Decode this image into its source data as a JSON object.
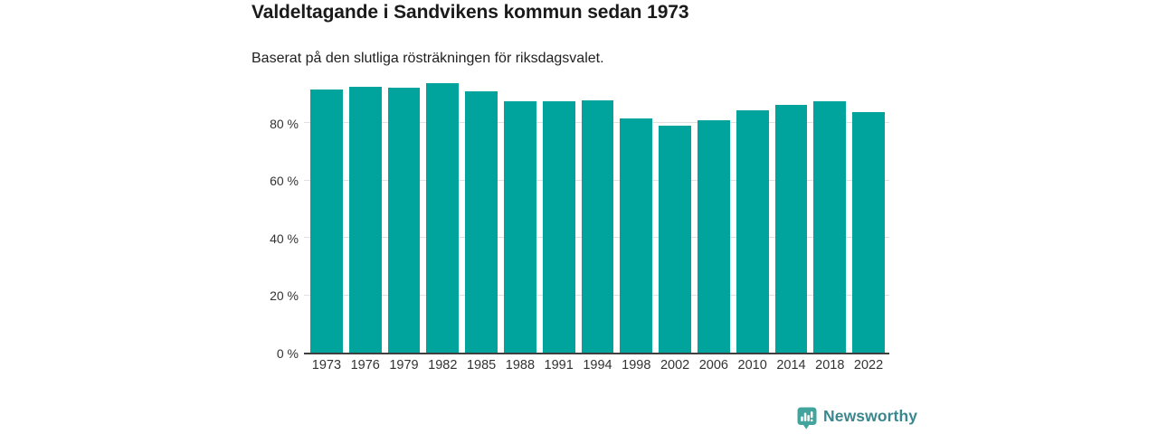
{
  "header": {
    "title": "Valdeltagande i Sandvikens kommun sedan 1973",
    "subtitle": "Baserat på den slutliga rösträkningen för riksdagsvalet."
  },
  "chart_data": {
    "type": "bar",
    "title": "Valdeltagande i Sandvikens kommun sedan 1973",
    "subtitle": "Baserat på den slutliga rösträkningen för riksdagsvalet.",
    "categories": [
      "1973",
      "1976",
      "1979",
      "1982",
      "1985",
      "1988",
      "1991",
      "1994",
      "1998",
      "2002",
      "2006",
      "2010",
      "2014",
      "2018",
      "2022"
    ],
    "values": [
      91.5,
      92.4,
      92.0,
      93.6,
      91.0,
      87.3,
      87.3,
      87.6,
      81.3,
      79.0,
      80.7,
      84.2,
      86.3,
      87.5,
      83.6
    ],
    "unit": "%",
    "xlabel": "",
    "ylabel": "",
    "ylim": [
      0,
      100
    ],
    "yticks": [
      {
        "value": 0,
        "label": "0 %"
      },
      {
        "value": 20,
        "label": "20 %"
      },
      {
        "value": 40,
        "label": "40 %"
      },
      {
        "value": 60,
        "label": "60 %"
      },
      {
        "value": 80,
        "label": "80 %"
      }
    ],
    "grid": true,
    "legend_position": "none",
    "bar_color": "#00a49c"
  },
  "colors": {
    "bar": "#00a49c",
    "grid": "#e0e0e0",
    "axis": "#3f3f3f",
    "title": "#1a1a1a",
    "subtitle": "#1f1f1f",
    "tick": "#333333",
    "logo_icon": "#43a49d",
    "logo_text": "#3c878d"
  },
  "footer": {
    "logo_text": "Newsworthy",
    "logo_icon": "newsworthy-chart-bubble-icon"
  }
}
